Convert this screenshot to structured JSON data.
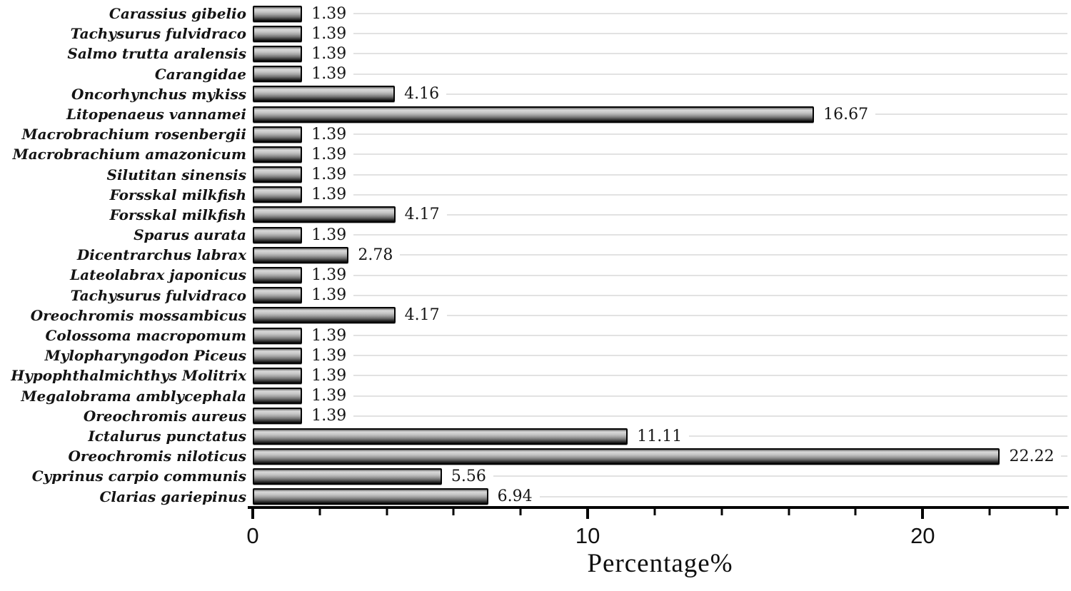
{
  "chart_data": {
    "type": "bar",
    "orientation": "horizontal",
    "title": "",
    "xlabel": "Percentage%",
    "ylabel": "",
    "xlim": [
      0,
      24.32
    ],
    "x_major_ticks": [
      0,
      10,
      20
    ],
    "x_major_tick_labels": [
      "0",
      "10",
      "20"
    ],
    "x_minor_tick_step": 2,
    "grid": "light horizontal leader line per row, right of value label",
    "legend": "none",
    "categories": [
      "Carassius gibelio",
      "Tachysurus fulvidraco",
      "Salmo trutta aralensis",
      "Carangidae",
      "Oncorhynchus mykiss",
      "Litopenaeus vannamei",
      "Macrobrachium rosenbergii",
      "Macrobrachium amazonicum",
      "Silutitan sinensis",
      "Forsskal milkfish",
      "Forsskal milkfish",
      "Sparus aurata",
      "Dicentrarchus labrax",
      "Lateolabrax japonicus",
      "Tachysurus fulvidraco",
      "Oreochromis mossambicus",
      "Colossoma macropomum",
      "Mylopharyngodon Piceus",
      "Hypophthalmichthys Molitrix",
      "Megalobrama amblycephala",
      "Oreochromis aureus",
      "Ictalurus punctatus",
      "Oreochromis niloticus",
      "Cyprinus carpio communis",
      "Clarias gariepinus"
    ],
    "values": [
      1.39,
      1.39,
      1.39,
      1.39,
      4.16,
      16.67,
      1.39,
      1.39,
      1.39,
      1.39,
      4.17,
      1.39,
      2.78,
      1.39,
      1.39,
      4.17,
      1.39,
      1.39,
      1.39,
      1.39,
      1.39,
      11.11,
      22.22,
      5.56,
      6.94
    ],
    "value_labels": [
      "1.39",
      "1.39",
      "1.39",
      "1.39",
      "4.16",
      "16.67",
      "1.39",
      "1.39",
      "1.39",
      "1.39",
      "4.17",
      "1.39",
      "2.78",
      "1.39",
      "1.39",
      "4.17",
      "1.39",
      "1.39",
      "1.39",
      "1.39",
      "1.39",
      "11.11",
      "22.22",
      "5.56",
      "6.94"
    ]
  },
  "colors": {
    "background": "#ffffff",
    "bar_border": "#050505",
    "bar_gradient_top": "#6a6a6a",
    "bar_gradient_light": "#d9d9d9",
    "bar_gradient_bottom": "#0c0c0c",
    "axis": "#050505",
    "row_leader_line": "#e2e2e2",
    "text": "#111111"
  }
}
